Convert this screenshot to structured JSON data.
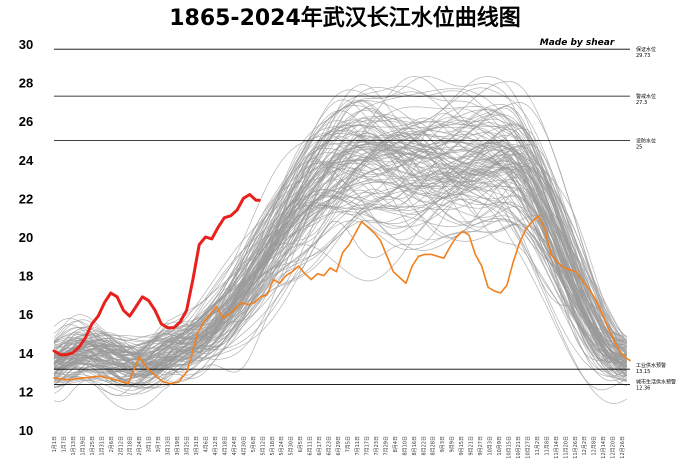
{
  "chart_data": {
    "type": "line",
    "title": "1865-2024年武汉长江水位曲线图",
    "credit": "Made by shear",
    "xlabel": "",
    "ylabel": "",
    "ylim": [
      10,
      30
    ],
    "yticks": [
      10,
      12,
      14,
      16,
      18,
      20,
      22,
      24,
      26,
      28,
      30
    ],
    "x_ticks": [
      "1月1日",
      "1月7日",
      "1月13日",
      "1月19日",
      "1月25日",
      "1月31日",
      "2月6日",
      "2月12日",
      "2月18日",
      "2月24日",
      "3月1日",
      "3月7日",
      "3月13日",
      "3月19日",
      "3月25日",
      "3月31日",
      "4月6日",
      "4月12日",
      "4月18日",
      "4月24日",
      "4月30日",
      "5月6日",
      "5月12日",
      "5月18日",
      "5月24日",
      "5月30日",
      "6月5日",
      "6月11日",
      "6月17日",
      "6月23日",
      "6月29日",
      "7月5日",
      "7月11日",
      "7月17日",
      "7月23日",
      "7月29日",
      "8月4日",
      "8月10日",
      "8月16日",
      "8月22日",
      "8月28日",
      "9月3日",
      "9月9日",
      "9月15日",
      "9月21日",
      "9月27日",
      "10月3日",
      "10月9日",
      "10月15日",
      "10月21日",
      "10月27日",
      "11月2日",
      "11月8日",
      "11月14日",
      "11月20日",
      "11月26日",
      "12月2日",
      "12月8日",
      "12月14日",
      "12月20日",
      "12月26日"
    ],
    "reference_lines": [
      {
        "name": "保证水位",
        "value_label": "29.73",
        "value": 29.73,
        "color": "#000000"
      },
      {
        "name": "警戒水位",
        "value_label": "27.3",
        "value": 27.3,
        "color": "#000000"
      },
      {
        "name": "设防水位",
        "value_label": "25",
        "value": 25,
        "color": "#000000"
      },
      {
        "name": "工业供水预警",
        "value_label": "13.15",
        "value": 13.15,
        "color": "#000000"
      },
      {
        "name": "城市生活供水预警",
        "value_label": "12.36",
        "value": 12.36,
        "color": "#000000"
      }
    ],
    "highlight_series": [
      {
        "color": "#e8211d",
        "x": [
          1,
          5,
          9,
          13,
          17,
          21,
          25,
          29,
          33,
          37,
          41,
          45,
          49,
          53,
          57,
          61,
          65,
          69,
          73,
          77,
          81,
          85,
          89,
          93,
          97,
          101,
          105,
          109,
          113,
          117,
          121,
          125,
          129,
          131
        ],
        "values": [
          14.1,
          13.9,
          13.9,
          14.0,
          14.3,
          14.8,
          15.5,
          15.9,
          16.6,
          17.1,
          16.9,
          16.2,
          15.9,
          16.4,
          16.9,
          16.7,
          16.2,
          15.5,
          15.3,
          15.3,
          15.6,
          16.2,
          17.8,
          19.6,
          20.0,
          19.9,
          20.5,
          21.0,
          21.1,
          21.4,
          22.0,
          22.2,
          21.9,
          21.9
        ]
      },
      {
        "color": "#f0801e",
        "x": [
          1,
          10,
          20,
          30,
          40,
          48,
          55,
          60,
          64,
          70,
          75,
          80,
          85,
          88,
          92,
          96,
          100,
          104,
          108,
          112,
          116,
          120,
          124,
          128,
          132,
          136,
          140,
          144,
          148,
          152,
          156,
          160,
          164,
          168,
          172,
          176,
          180,
          184,
          188,
          192,
          196,
          200,
          204,
          208,
          212,
          216,
          220,
          224,
          228,
          232,
          236,
          240,
          244,
          248,
          252,
          256,
          260,
          264,
          268,
          272,
          276,
          280,
          284,
          288,
          292,
          296,
          300,
          304,
          308,
          312,
          316,
          320,
          324,
          328,
          332,
          336,
          340,
          344,
          348,
          352,
          356,
          360,
          364,
          366
        ],
        "values": [
          12.7,
          12.6,
          12.7,
          12.8,
          12.6,
          12.4,
          13.8,
          13.2,
          12.9,
          12.5,
          12.4,
          12.5,
          13.0,
          13.8,
          15.0,
          15.6,
          16.0,
          16.4,
          15.8,
          16.0,
          16.3,
          16.6,
          16.5,
          16.6,
          16.9,
          17.0,
          17.8,
          17.6,
          18.0,
          18.2,
          18.5,
          18.1,
          17.8,
          18.1,
          18.0,
          18.4,
          18.2,
          19.2,
          19.6,
          20.2,
          20.8,
          20.5,
          20.2,
          19.8,
          19.0,
          18.2,
          17.9,
          17.6,
          18.5,
          19.0,
          19.1,
          19.1,
          19.0,
          18.9,
          19.5,
          20.0,
          20.3,
          20.1,
          19.1,
          18.5,
          17.4,
          17.2,
          17.1,
          17.5,
          18.7,
          19.7,
          20.4,
          20.8,
          21.1,
          20.4,
          19.1,
          18.7,
          18.4,
          18.3,
          18.2,
          17.7,
          17.3,
          16.8,
          16.1,
          15.3,
          14.6,
          14.0,
          13.7,
          13.6
        ]
      }
    ],
    "background_series_note": ""
  }
}
